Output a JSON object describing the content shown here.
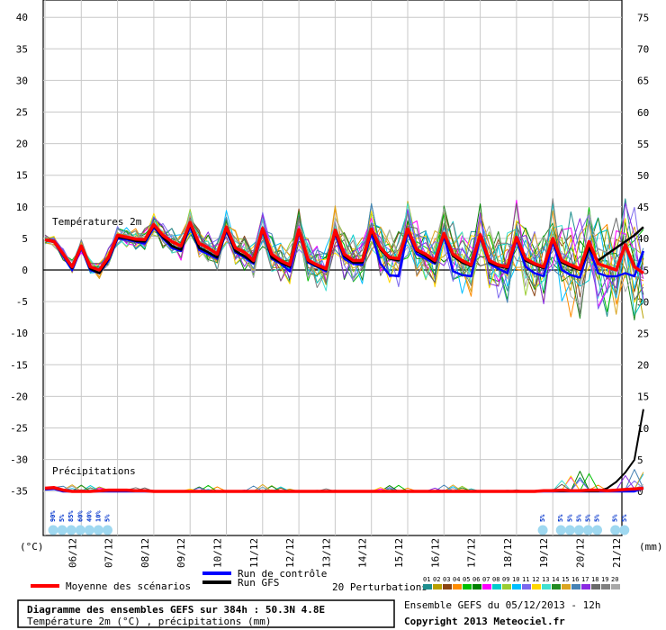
{
  "chart_data": {
    "type": "line",
    "temp_axis_label": "(°C)",
    "precip_axis_label": "(mm)",
    "temp_ticks": [
      40,
      35,
      30,
      25,
      20,
      15,
      10,
      5,
      0,
      -5,
      -10,
      -15,
      -20,
      -25,
      -30,
      -35
    ],
    "precip_ticks": [
      75,
      70,
      65,
      60,
      55,
      50,
      45,
      40,
      35,
      30,
      25,
      20,
      15,
      10,
      5,
      0
    ],
    "temp_section_label": "Températures 2m",
    "precip_section_label": "Précipitations",
    "dates": [
      "06/12",
      "07/12",
      "08/12",
      "09/12",
      "10/12",
      "11/12",
      "12/12",
      "13/12",
      "14/12",
      "15/12",
      "16/12",
      "17/12",
      "18/12",
      "19/12",
      "20/12",
      "21/12"
    ],
    "snow_labels": [
      {
        "day": 0.1,
        "text": "90%"
      },
      {
        "day": 0.35,
        "text": "5%"
      },
      {
        "day": 0.6,
        "text": "85%"
      },
      {
        "day": 0.85,
        "text": "60%"
      },
      {
        "day": 1.1,
        "text": "40%"
      },
      {
        "day": 1.35,
        "text": "10%"
      },
      {
        "day": 1.6,
        "text": "5%"
      },
      {
        "day": 13.6,
        "text": "5%"
      },
      {
        "day": 14.1,
        "text": "5%"
      },
      {
        "day": 14.35,
        "text": "5%"
      },
      {
        "day": 14.6,
        "text": "5%"
      },
      {
        "day": 14.85,
        "text": "5%"
      },
      {
        "day": 15.1,
        "text": "5%"
      },
      {
        "day": 15.6,
        "text": "5%"
      },
      {
        "day": 15.85,
        "text": "5%"
      }
    ],
    "mean_temperature": [
      4.8,
      4.5,
      2.5,
      0.5,
      3.8,
      0.5,
      0,
      2,
      5.5,
      5.2,
      4.9,
      4.8,
      7.2,
      5.5,
      4.5,
      3.8,
      7.5,
      4.2,
      3.5,
      2.5,
      6.8,
      3.5,
      2.8,
      1.5,
      6.6,
      2.5,
      1.5,
      0.8,
      6.4,
      1.6,
      0.8,
      0.2,
      6.3,
      2.5,
      1.5,
      1.5,
      6.5,
      3.5,
      2,
      1.8,
      6.5,
      3.2,
      2.5,
      1.5,
      5.8,
      2.5,
      1.5,
      0.8,
      5.6,
      1.5,
      0.8,
      0.5,
      5.2,
      1.8,
      1,
      0.5,
      5,
      1.5,
      0.8,
      0.2,
      4.5,
      1,
      0.5,
      0,
      4,
      0.5,
      -0.5
    ],
    "gfs_temperature": [
      4.8,
      4.6,
      2.5,
      0.3,
      3.8,
      0.2,
      -0.5,
      1.8,
      5.2,
      5,
      4.6,
      4.5,
      7,
      5.2,
      3.8,
      3.2,
      7.3,
      3.5,
      2.8,
      2,
      6.5,
      3,
      2.2,
      1.2,
      6.4,
      2,
      1.2,
      0.5,
      6.2,
      1.4,
      0.6,
      0,
      6,
      2.2,
      1.2,
      1.2,
      6.2,
      3.2,
      1.8,
      1.5,
      6.3,
      3,
      2.2,
      1.2,
      5.6,
      2.2,
      1.2,
      0.6,
      5.4,
      1.2,
      0.6,
      0.3,
      5,
      1.5,
      0.8,
      0.3,
      4.8,
      1.2,
      0.5,
      0,
      3.5,
      1.5,
      2.5,
      3.5,
      4.5,
      5.5,
      6.8
    ],
    "control_temperature": [
      4.8,
      4.4,
      2.2,
      0,
      3.5,
      0,
      -0.5,
      1.5,
      5,
      4.8,
      4.5,
      4.2,
      6.8,
      5,
      3.5,
      3,
      7,
      3.2,
      2.5,
      1.8,
      6.2,
      2.8,
      2,
      1,
      6.2,
      1.8,
      1,
      -0.2,
      6,
      1.2,
      0.5,
      -0.2,
      5.8,
      1.8,
      1,
      0.8,
      5.8,
      1,
      -0.8,
      -1,
      6,
      2.5,
      1.8,
      1,
      5.4,
      -0.2,
      -0.8,
      -1,
      5.2,
      1,
      0.2,
      -0.5,
      4.8,
      0.5,
      -0.5,
      -1,
      4.5,
      0,
      -0.8,
      -1.2,
      3.5,
      -0.5,
      -1,
      -1,
      -0.5,
      -1,
      3
    ],
    "mean_precipitation": [
      0.5,
      0.6,
      0.2,
      0,
      0,
      0,
      0.1,
      0.2,
      0.2,
      0.2,
      0.1,
      0.1,
      0,
      0,
      0,
      0,
      0,
      0,
      0,
      0,
      0,
      0,
      0,
      0,
      0,
      0,
      0,
      0,
      0,
      0,
      0,
      0,
      0,
      0,
      0,
      0,
      0,
      0,
      0,
      0,
      0,
      0,
      0,
      0,
      0,
      0,
      0,
      0,
      0,
      0,
      0,
      0,
      0,
      0,
      0,
      0.1,
      0.1,
      0.2,
      0.1,
      0.1,
      0.2,
      0.2,
      0.1,
      0.2,
      0.3,
      0.4,
      0.5
    ],
    "gfs_precipitation": [
      0.4,
      0.5,
      0.1,
      0,
      0,
      0,
      0,
      0.1,
      0.1,
      0.1,
      0,
      0,
      0,
      0,
      0,
      0,
      0,
      0,
      0,
      0,
      0,
      0,
      0,
      0,
      0,
      0,
      0,
      0,
      0,
      0,
      0,
      0,
      0,
      0,
      0,
      0,
      0,
      0,
      0,
      0,
      0,
      0,
      0,
      0,
      0,
      0,
      0,
      0,
      0,
      0,
      0,
      0,
      0,
      0,
      0,
      0,
      0,
      0,
      0,
      0,
      0,
      0,
      0.5,
      1.5,
      3,
      5,
      13
    ],
    "control_precipitation": [
      0.3,
      0.4,
      0,
      0,
      0,
      0,
      0,
      0,
      0,
      0,
      0,
      0,
      0,
      0,
      0,
      0,
      0,
      0,
      0,
      0,
      0,
      0,
      0,
      0,
      0,
      0,
      0,
      0,
      0,
      0,
      0,
      0,
      0,
      0,
      0,
      0,
      0,
      0,
      0,
      0,
      0,
      0,
      0,
      0,
      0,
      0,
      0,
      0,
      0,
      0,
      0,
      0,
      0,
      0,
      0,
      0,
      0,
      0,
      0,
      0,
      0,
      0,
      0,
      0,
      0,
      0,
      0.5
    ],
    "legend": {
      "mean": "Moyenne des scénarios",
      "control": "Run de contrôle",
      "gfs": "Run GFS",
      "perturbations": "20 Perturbations",
      "perturbation_numbers": [
        "01",
        "02",
        "03",
        "04",
        "05",
        "06",
        "07",
        "08",
        "09",
        "10",
        "11",
        "12",
        "13",
        "14",
        "15",
        "16",
        "17",
        "18",
        "19",
        "20"
      ]
    },
    "colors": {
      "mean": "#ff0000",
      "control": "#0000ff",
      "gfs": "#000000",
      "perturbations": [
        "#1f8f8f",
        "#b8a000",
        "#8b4513",
        "#ff8c00",
        "#00c000",
        "#008000",
        "#ff00ff",
        "#00cccc",
        "#9acd32",
        "#00bfff",
        "#7b68ee",
        "#ffd700",
        "#40e0d0",
        "#228b22",
        "#daa520",
        "#4682b4",
        "#8a2be2",
        "#696969",
        "#808080",
        "#a9a9a9"
      ]
    }
  },
  "footer": {
    "title": "Diagramme des ensembles GEFS sur 384h : 50.3N 4.8E",
    "subtitle": "Température 2m (°C) , précipitations (mm)",
    "run_info": "Ensemble GEFS du 05/12/2013 - 12h",
    "copyright": "Copyright 2013 Meteociel.fr"
  }
}
